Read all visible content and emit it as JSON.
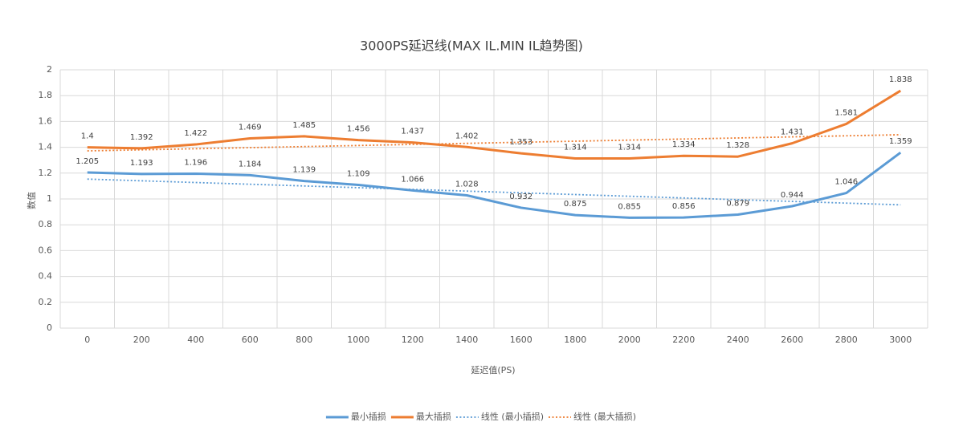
{
  "chart_data": {
    "type": "line",
    "title": "3000PS延迟线(MAX IL.MIN IL趋势图)",
    "x_label": "延迟值(PS)",
    "y_label": "数值",
    "categories": [
      "0",
      "200",
      "400",
      "600",
      "800",
      "1000",
      "1200",
      "1400",
      "1600",
      "1800",
      "2000",
      "2200",
      "2400",
      "2600",
      "2800",
      "3000"
    ],
    "series": [
      {
        "name": "最小插损",
        "color": "#5b9bd5",
        "values": [
          1.205,
          1.193,
          1.196,
          1.184,
          1.139,
          1.109,
          1.066,
          1.028,
          0.932,
          0.875,
          0.855,
          0.856,
          0.879,
          0.944,
          1.046,
          1.359
        ],
        "trendline": {
          "name": "线性 (最小插损)",
          "color": "#5b9bd5",
          "kind": "linear"
        }
      },
      {
        "name": "最大插损",
        "color": "#ed7d31",
        "values": [
          1.4,
          1.392,
          1.422,
          1.469,
          1.485,
          1.456,
          1.437,
          1.402,
          1.353,
          1.314,
          1.314,
          1.334,
          1.328,
          1.431,
          1.581,
          1.838
        ],
        "trendline": {
          "name": "线性 (最大插损)",
          "color": "#ed7d31",
          "kind": "linear"
        }
      }
    ],
    "ylim": [
      0,
      2
    ],
    "yticks": [
      0,
      0.2,
      0.4,
      0.6,
      0.8,
      1,
      1.2,
      1.4,
      1.6,
      1.8,
      2
    ],
    "grid": true,
    "data_labels": true,
    "legend": "bottom"
  }
}
